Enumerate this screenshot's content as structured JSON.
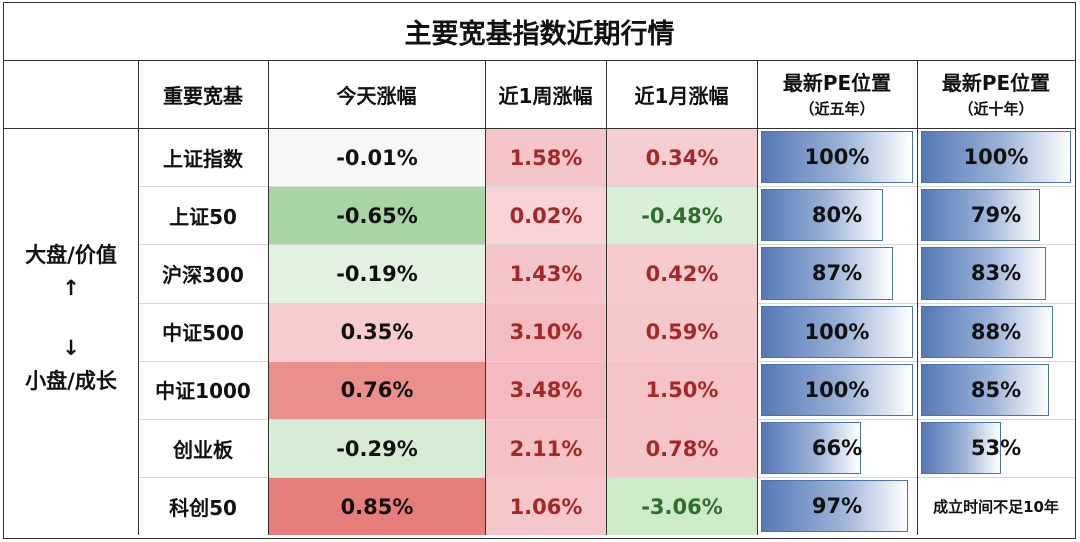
{
  "title": "主要宽基指数近期行情",
  "headers": {
    "name": "重要宽基",
    "today": "今天涨幅",
    "week": "近1周涨幅",
    "month": "近1月涨幅",
    "pe5_line1": "最新PE位置",
    "pe5_line2": "（近五年）",
    "pe10_line1": "最新PE位置",
    "pe10_line2": "（近十年）"
  },
  "side_label": {
    "top": "大盘/价值",
    "up_arrow": "↑",
    "down_arrow": "↓",
    "bottom": "小盘/成长"
  },
  "colors": {
    "red_text": "#a52828",
    "green_text": "#2f6e2f",
    "bar_blue": "#5579b6"
  },
  "rows": [
    {
      "name": "上证指数",
      "today": {
        "text": "-0.01%",
        "bg": "#f7f9f7",
        "tone": "dark"
      },
      "week": {
        "text": "1.58%",
        "bg": "#f5c6c9",
        "tone": "red"
      },
      "month": {
        "text": "0.34%",
        "bg": "#f6cdd0",
        "tone": "red"
      },
      "pe5": {
        "text": "100%",
        "pct": 100
      },
      "pe10": {
        "text": "100%",
        "pct": 100
      }
    },
    {
      "name": "上证50",
      "today": {
        "text": "-0.65%",
        "bg": "#a8d5a5",
        "tone": "dark"
      },
      "week": {
        "text": "0.02%",
        "bg": "#f8d2d5",
        "tone": "red"
      },
      "month": {
        "text": "-0.48%",
        "bg": "#d9efd6",
        "tone": "green"
      },
      "pe5": {
        "text": "80%",
        "pct": 80
      },
      "pe10": {
        "text": "79%",
        "pct": 79
      }
    },
    {
      "name": "沪深300",
      "today": {
        "text": "-0.19%",
        "bg": "#e2f1e0",
        "tone": "dark"
      },
      "week": {
        "text": "1.43%",
        "bg": "#f5c6c9",
        "tone": "red"
      },
      "month": {
        "text": "0.42%",
        "bg": "#f6cbce",
        "tone": "red"
      },
      "pe5": {
        "text": "87%",
        "pct": 87
      },
      "pe10": {
        "text": "83%",
        "pct": 83
      }
    },
    {
      "name": "中证500",
      "today": {
        "text": "0.35%",
        "bg": "#f6cccf",
        "tone": "dark"
      },
      "week": {
        "text": "3.10%",
        "bg": "#f3bdc1",
        "tone": "red"
      },
      "month": {
        "text": "0.59%",
        "bg": "#f5c8cb",
        "tone": "red"
      },
      "pe5": {
        "text": "100%",
        "pct": 100
      },
      "pe10": {
        "text": "88%",
        "pct": 88
      }
    },
    {
      "name": "中证1000",
      "today": {
        "text": "0.76%",
        "bg": "#eb8f8c",
        "tone": "dark"
      },
      "week": {
        "text": "3.48%",
        "bg": "#f3bbbf",
        "tone": "red"
      },
      "month": {
        "text": "1.50%",
        "bg": "#f4c3c6",
        "tone": "red"
      },
      "pe5": {
        "text": "100%",
        "pct": 100
      },
      "pe10": {
        "text": "85%",
        "pct": 85
      }
    },
    {
      "name": "创业板",
      "today": {
        "text": "-0.29%",
        "bg": "#d7ecd4",
        "tone": "dark"
      },
      "week": {
        "text": "2.11%",
        "bg": "#f4c2c5",
        "tone": "red"
      },
      "month": {
        "text": "0.78%",
        "bg": "#f5c6c9",
        "tone": "red"
      },
      "pe5": {
        "text": "66%",
        "pct": 66
      },
      "pe10": {
        "text": "53%",
        "pct": 53
      }
    },
    {
      "name": "科创50",
      "today": {
        "text": "0.85%",
        "bg": "#e87e7c",
        "tone": "dark"
      },
      "week": {
        "text": "1.06%",
        "bg": "#f5c7ca",
        "tone": "red"
      },
      "month": {
        "text": "-3.06%",
        "bg": "#cdeac9",
        "tone": "green"
      },
      "pe5": {
        "text": "97%",
        "pct": 97
      },
      "pe10": {
        "text": "成立时间不足10年",
        "pct": 0
      }
    }
  ]
}
